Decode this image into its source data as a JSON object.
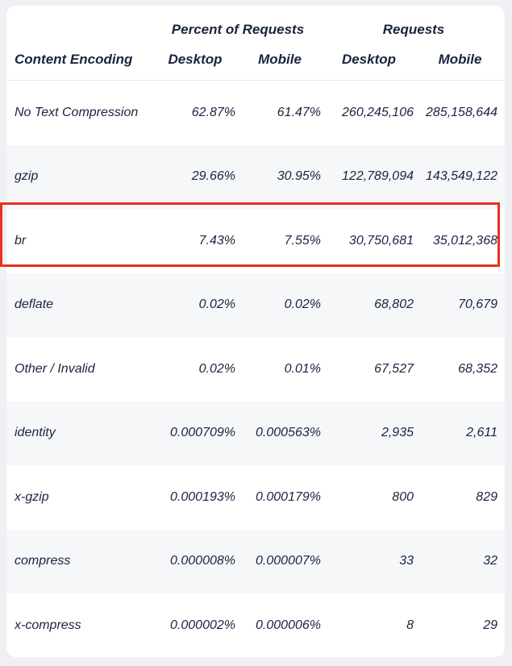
{
  "table": {
    "group_headers": {
      "percent": "Percent of Requests",
      "requests": "Requests"
    },
    "columns": [
      "Content Encoding",
      "Desktop",
      "Mobile",
      "Desktop",
      "Mobile"
    ],
    "rows": [
      {
        "encoding": "No Text Compression",
        "pct_desktop": "62.87%",
        "pct_mobile": "61.47%",
        "req_desktop": "260,245,106",
        "req_mobile": "285,158,644"
      },
      {
        "encoding": "gzip",
        "pct_desktop": "29.66%",
        "pct_mobile": "30.95%",
        "req_desktop": "122,789,094",
        "req_mobile": "143,549,122"
      },
      {
        "encoding": "br",
        "pct_desktop": "7.43%",
        "pct_mobile": "7.55%",
        "req_desktop": "30,750,681",
        "req_mobile": "35,012,368"
      },
      {
        "encoding": "deflate",
        "pct_desktop": "0.02%",
        "pct_mobile": "0.02%",
        "req_desktop": "68,802",
        "req_mobile": "70,679"
      },
      {
        "encoding": "Other / Invalid",
        "pct_desktop": "0.02%",
        "pct_mobile": "0.01%",
        "req_desktop": "67,527",
        "req_mobile": "68,352"
      },
      {
        "encoding": "identity",
        "pct_desktop": "0.000709%",
        "pct_mobile": "0.000563%",
        "req_desktop": "2,935",
        "req_mobile": "2,611"
      },
      {
        "encoding": "x-gzip",
        "pct_desktop": "0.000193%",
        "pct_mobile": "0.000179%",
        "req_desktop": "800",
        "req_mobile": "829"
      },
      {
        "encoding": "compress",
        "pct_desktop": "0.000008%",
        "pct_mobile": "0.000007%",
        "req_desktop": "33",
        "req_mobile": "32"
      },
      {
        "encoding": "x-compress",
        "pct_desktop": "0.000002%",
        "pct_mobile": "0.000006%",
        "req_desktop": "8",
        "req_mobile": "29"
      }
    ],
    "highlighted_row": "br",
    "highlight_color": "#e8321e"
  }
}
